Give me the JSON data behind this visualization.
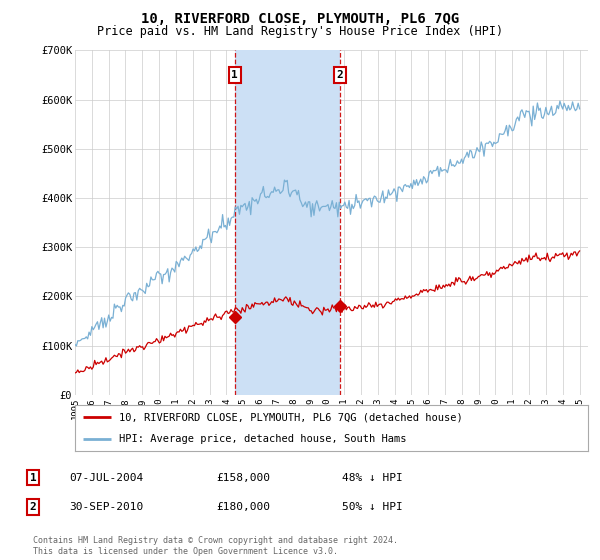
{
  "title": "10, RIVERFORD CLOSE, PLYMOUTH, PL6 7QG",
  "subtitle": "Price paid vs. HM Land Registry's House Price Index (HPI)",
  "legend_line1": "10, RIVERFORD CLOSE, PLYMOUTH, PL6 7QG (detached house)",
  "legend_line2": "HPI: Average price, detached house, South Hams",
  "annotation1_date": "07-JUL-2004",
  "annotation1_price": "£158,000",
  "annotation1_hpi": "48% ↓ HPI",
  "annotation2_date": "30-SEP-2010",
  "annotation2_price": "£180,000",
  "annotation2_hpi": "50% ↓ HPI",
  "footer": "Contains HM Land Registry data © Crown copyright and database right 2024.\nThis data is licensed under the Open Government Licence v3.0.",
  "red_color": "#cc0000",
  "blue_color": "#7ab0d4",
  "annotation_box_color": "#cc0000",
  "shading_color": "#cce0f5",
  "background_color": "#ffffff",
  "grid_color": "#cccccc",
  "ylim": [
    0,
    700000
  ],
  "yticks": [
    0,
    100000,
    200000,
    300000,
    400000,
    500000,
    600000,
    700000
  ],
  "ytick_labels": [
    "£0",
    "£100K",
    "£200K",
    "£300K",
    "£400K",
    "£500K",
    "£600K",
    "£700K"
  ],
  "sale1_year": 2004.5,
  "sale2_year": 2010.75,
  "sale1_price": 158000,
  "sale2_price": 180000,
  "xmin": 1995.0,
  "xmax": 2025.5
}
